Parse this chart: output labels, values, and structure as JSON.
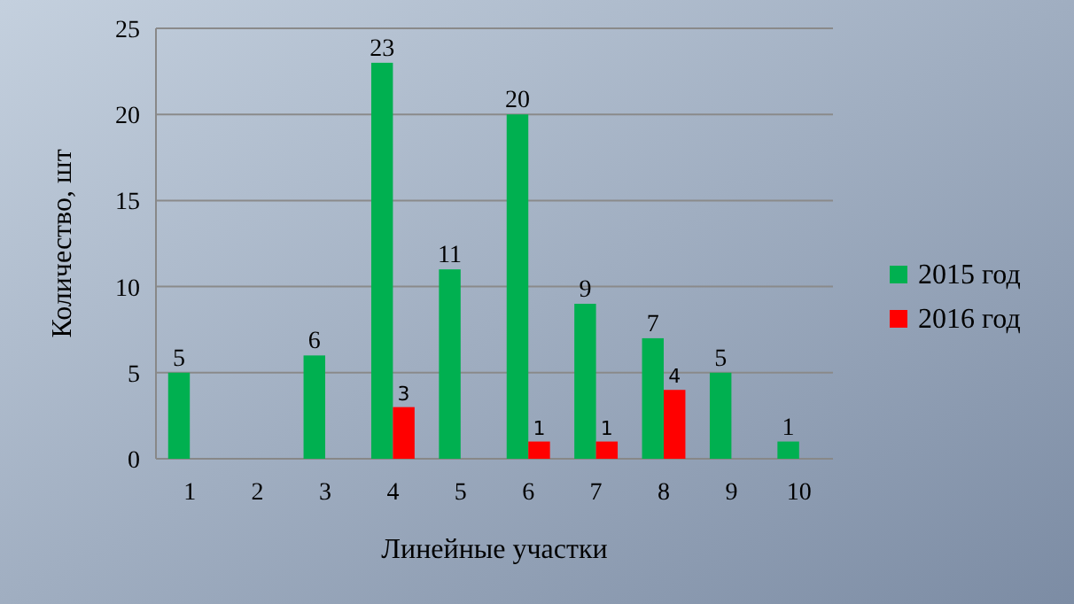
{
  "chart_data": {
    "type": "bar",
    "xlabel": "Линейные участки",
    "ylabel": "Количество, шт",
    "categories": [
      "1",
      "2",
      "3",
      "4",
      "5",
      "6",
      "7",
      "8",
      "9",
      "10"
    ],
    "series": [
      {
        "name": "2015 год",
        "color": "#00b050",
        "values": [
          5,
          null,
          6,
          23,
          11,
          20,
          9,
          7,
          5,
          1
        ]
      },
      {
        "name": "2016 год",
        "color": "#ff0000",
        "values": [
          null,
          null,
          null,
          3,
          null,
          1,
          1,
          4,
          null,
          null
        ]
      }
    ],
    "ylim": [
      0,
      25
    ],
    "yticks": [
      0,
      5,
      10,
      15,
      20,
      25
    ],
    "grid": "y",
    "legend": "right",
    "data_labels": true
  }
}
